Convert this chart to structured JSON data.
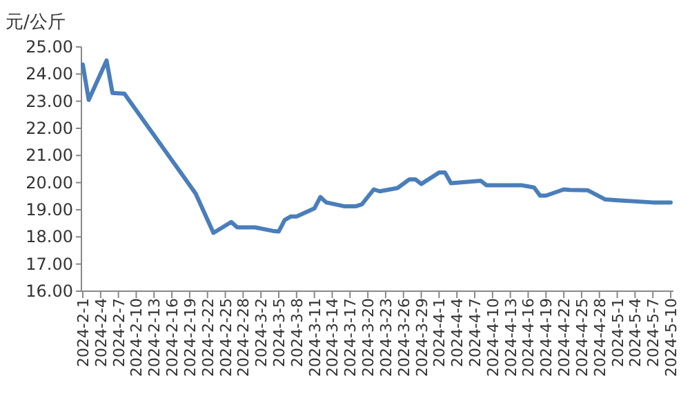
{
  "chart_data": {
    "type": "line",
    "ylabel": "元/公斤",
    "x": [
      "2024-02-01",
      "2024-02-02",
      "2024-02-05",
      "2024-02-06",
      "2024-02-08",
      "2024-02-20",
      "2024-02-23",
      "2024-02-26",
      "2024-02-27",
      "2024-03-01",
      "2024-03-04",
      "2024-03-05",
      "2024-03-06",
      "2024-03-07",
      "2024-03-08",
      "2024-03-11",
      "2024-03-12",
      "2024-03-13",
      "2024-03-16",
      "2024-03-18",
      "2024-03-19",
      "2024-03-21",
      "2024-03-22",
      "2024-03-25",
      "2024-03-27",
      "2024-03-28",
      "2024-03-29",
      "2024-04-01",
      "2024-04-02",
      "2024-04-03",
      "2024-04-08",
      "2024-04-09",
      "2024-04-15",
      "2024-04-17",
      "2024-04-18",
      "2024-04-19",
      "2024-04-22",
      "2024-04-23",
      "2024-04-26",
      "2024-04-29",
      "2024-05-01",
      "2024-05-07",
      "2024-05-10"
    ],
    "series": [
      {
        "color": "#4a7ebb",
        "values": [
          24.35,
          23.05,
          24.5,
          23.3,
          23.28,
          19.6,
          18.15,
          18.55,
          18.35,
          18.35,
          18.22,
          18.2,
          18.62,
          18.75,
          18.75,
          19.05,
          19.47,
          19.27,
          19.13,
          19.13,
          19.2,
          19.75,
          19.68,
          19.8,
          20.12,
          20.12,
          19.95,
          20.37,
          20.37,
          19.98,
          20.07,
          19.9,
          19.9,
          19.82,
          19.52,
          19.52,
          19.75,
          19.73,
          19.72,
          19.38,
          19.35,
          19.27,
          19.27
        ]
      }
    ],
    "line_style": "solid",
    "xlim": [
      "2024-02-01",
      "2024-05-10"
    ],
    "xticks": [
      {
        "value": "2024-02-01",
        "label": "2024-2-1"
      },
      {
        "value": "2024-02-04",
        "label": "2024-2-4"
      },
      {
        "value": "2024-02-07",
        "label": "2024-2-7"
      },
      {
        "value": "2024-02-10",
        "label": "2024-2-10"
      },
      {
        "value": "2024-02-13",
        "label": "2024-2-13"
      },
      {
        "value": "2024-02-16",
        "label": "2024-2-16"
      },
      {
        "value": "2024-02-19",
        "label": "2024-2-19"
      },
      {
        "value": "2024-02-22",
        "label": "2024-2-22"
      },
      {
        "value": "2024-02-25",
        "label": "2024-2-25"
      },
      {
        "value": "2024-02-28",
        "label": "2024-2-28"
      },
      {
        "value": "2024-03-02",
        "label": "2024-3-2"
      },
      {
        "value": "2024-03-05",
        "label": "2024-3-5"
      },
      {
        "value": "2024-03-08",
        "label": "2024-3-8"
      },
      {
        "value": "2024-03-11",
        "label": "2024-3-11"
      },
      {
        "value": "2024-03-14",
        "label": "2024-3-14"
      },
      {
        "value": "2024-03-17",
        "label": "2024-3-17"
      },
      {
        "value": "2024-03-20",
        "label": "2024-3-20"
      },
      {
        "value": "2024-03-23",
        "label": "2024-3-23"
      },
      {
        "value": "2024-03-26",
        "label": "2024-3-26"
      },
      {
        "value": "2024-03-29",
        "label": "2024-3-29"
      },
      {
        "value": "2024-04-01",
        "label": "2024-4-1"
      },
      {
        "value": "2024-04-04",
        "label": "2024-4-4"
      },
      {
        "value": "2024-04-07",
        "label": "2024-4-7"
      },
      {
        "value": "2024-04-10",
        "label": "2024-4-10"
      },
      {
        "value": "2024-04-13",
        "label": "2024-4-13"
      },
      {
        "value": "2024-04-16",
        "label": "2024-4-16"
      },
      {
        "value": "2024-04-19",
        "label": "2024-4-19"
      },
      {
        "value": "2024-04-22",
        "label": "2024-4-22"
      },
      {
        "value": "2024-04-25",
        "label": "2024-4-25"
      },
      {
        "value": "2024-04-28",
        "label": "2024-4-28"
      },
      {
        "value": "2024-05-01",
        "label": "2024-5-1"
      },
      {
        "value": "2024-05-04",
        "label": "2024-5-4"
      },
      {
        "value": "2024-05-07",
        "label": "2024-5-7"
      },
      {
        "value": "2024-05-10",
        "label": "2024-5-10"
      }
    ],
    "ylim": [
      16,
      25
    ],
    "yticks": [
      {
        "value": 16,
        "label": "16.00"
      },
      {
        "value": 17,
        "label": "17.00"
      },
      {
        "value": 18,
        "label": "18.00"
      },
      {
        "value": 19,
        "label": "19.00"
      },
      {
        "value": 20,
        "label": "20.00"
      },
      {
        "value": 21,
        "label": "21.00"
      },
      {
        "value": 22,
        "label": "22.00"
      },
      {
        "value": 23,
        "label": "23.00"
      },
      {
        "value": 24,
        "label": "24.00"
      },
      {
        "value": 25,
        "label": "25.00"
      }
    ]
  }
}
